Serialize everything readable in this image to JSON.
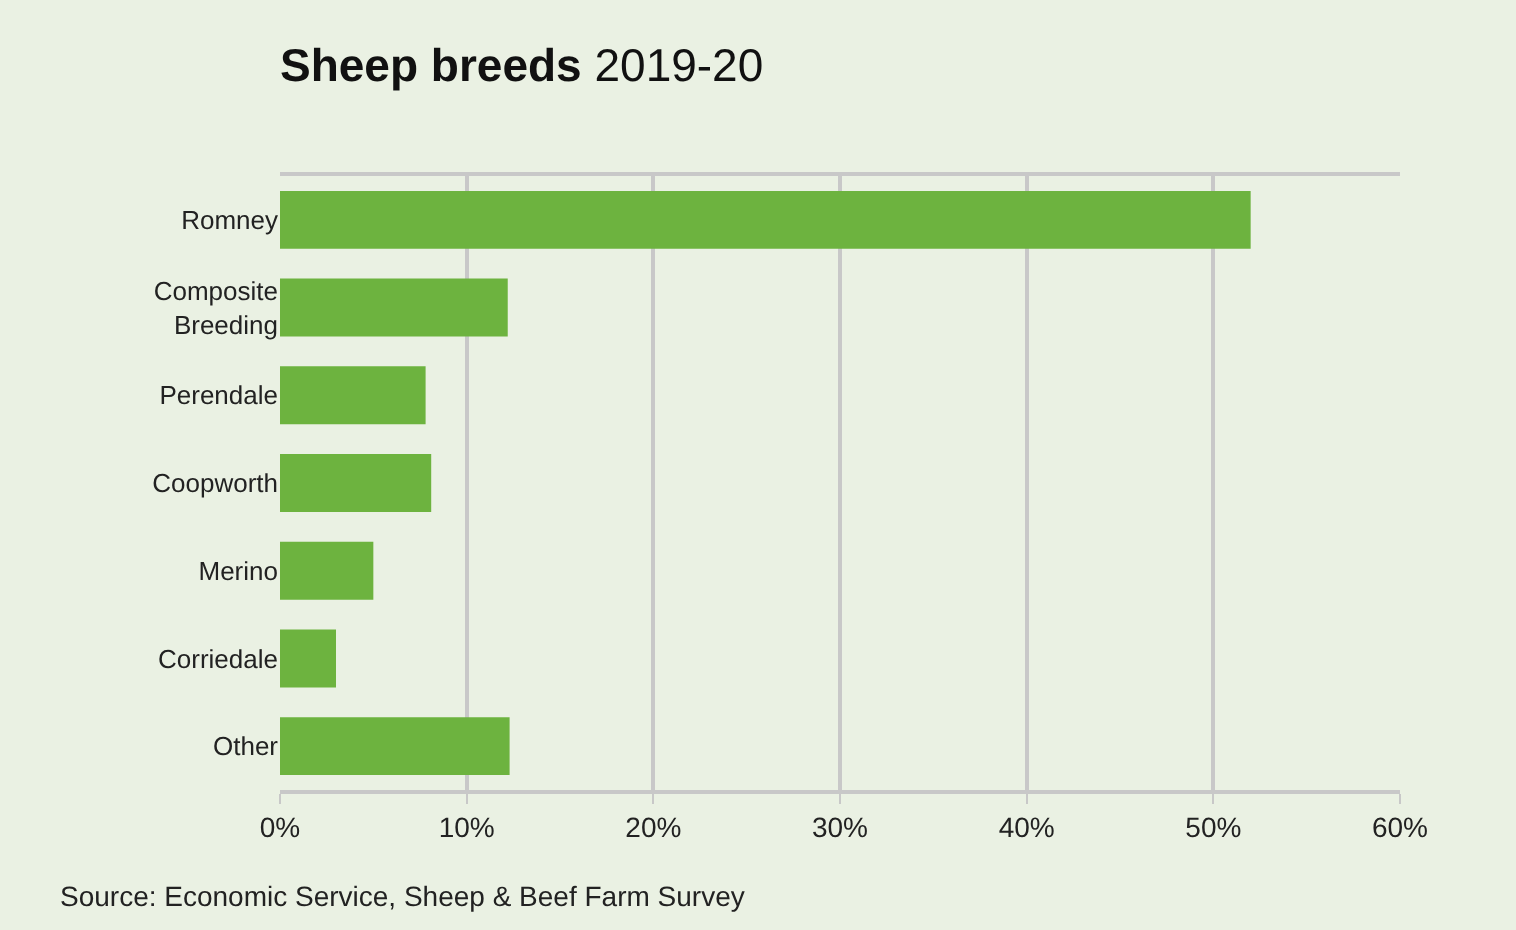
{
  "chart_data": {
    "type": "bar",
    "orientation": "horizontal",
    "title": "Sheep breeds",
    "subtitle": "2019-20",
    "categories": [
      "Romney",
      "Composite\nBreeding",
      "Perendale",
      "Coopworth",
      "Merino",
      "Corriedale",
      "Other"
    ],
    "values": [
      52,
      12.2,
      7.8,
      8.1,
      5.0,
      3.0,
      12.3
    ],
    "color": "#6db33f",
    "xlim": [
      0,
      60
    ],
    "xticks": [
      {
        "value": 0,
        "label": "0%"
      },
      {
        "value": 10,
        "label": "10%"
      },
      {
        "value": 20,
        "label": "20%"
      },
      {
        "value": 30,
        "label": "30%"
      },
      {
        "value": 40,
        "label": "40%"
      },
      {
        "value": 50,
        "label": "50%"
      },
      {
        "value": 60,
        "label": "60%"
      }
    ],
    "grid": "x",
    "legend": false,
    "annotations": [
      "Source: Economic Service, Sheep & Beef Farm Survey"
    ]
  }
}
